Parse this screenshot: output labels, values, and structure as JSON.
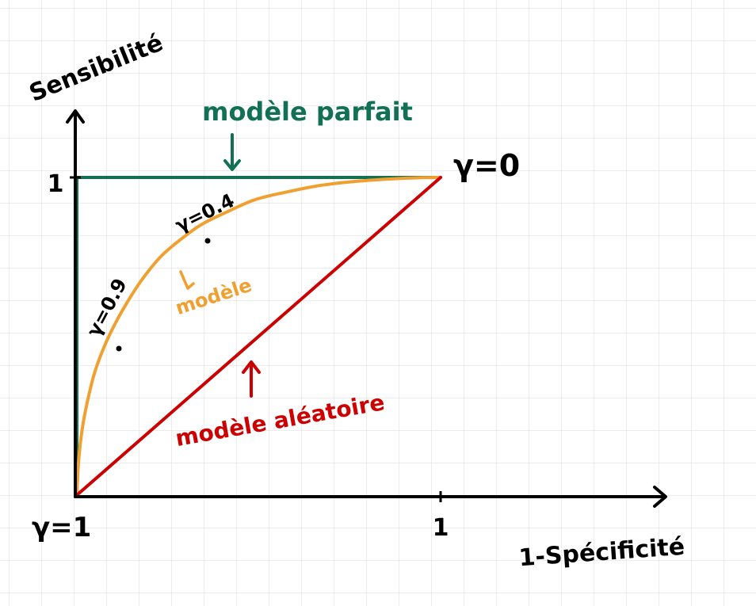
{
  "chart_data": {
    "type": "line",
    "xlabel": "1-Spécificité",
    "ylabel": "Sensibilité",
    "xlim": [
      0,
      1
    ],
    "ylim": [
      0,
      1
    ],
    "grid": true,
    "x_tick_labels": [
      "1"
    ],
    "y_tick_labels": [
      "1"
    ],
    "series": [
      {
        "name": "modèle parfait",
        "color": "#127154",
        "points": [
          [
            0,
            0
          ],
          [
            0,
            1
          ],
          [
            1,
            1
          ]
        ]
      },
      {
        "name": "modèle",
        "color": "#f0a030",
        "points": [
          [
            0.0,
            0.0
          ],
          [
            0.005,
            0.11
          ],
          [
            0.015,
            0.21
          ],
          [
            0.03,
            0.3
          ],
          [
            0.05,
            0.39
          ],
          [
            0.08,
            0.48
          ],
          [
            0.11,
            0.55
          ],
          [
            0.14,
            0.61
          ],
          [
            0.18,
            0.68
          ],
          [
            0.23,
            0.75
          ],
          [
            0.28,
            0.8
          ],
          [
            0.34,
            0.85
          ],
          [
            0.41,
            0.89
          ],
          [
            0.49,
            0.93
          ],
          [
            0.58,
            0.955
          ],
          [
            0.67,
            0.975
          ],
          [
            0.76,
            0.987
          ],
          [
            0.86,
            0.995
          ],
          [
            0.94,
            0.999
          ],
          [
            1.0,
            1.0
          ]
        ]
      },
      {
        "name": "modèle aléatoire",
        "color": "#cc0000",
        "points": [
          [
            0,
            0
          ],
          [
            1,
            1
          ]
        ]
      }
    ],
    "annotations": [
      {
        "text": "γ=0",
        "x": 1.0,
        "y": 1.0
      },
      {
        "text": "γ=1",
        "x": 0.0,
        "y": 0.0
      },
      {
        "text": "γ=0.4",
        "x": 0.36,
        "y": 0.81
      },
      {
        "text": "γ=0.9",
        "x": 0.12,
        "y": 0.46
      }
    ]
  }
}
